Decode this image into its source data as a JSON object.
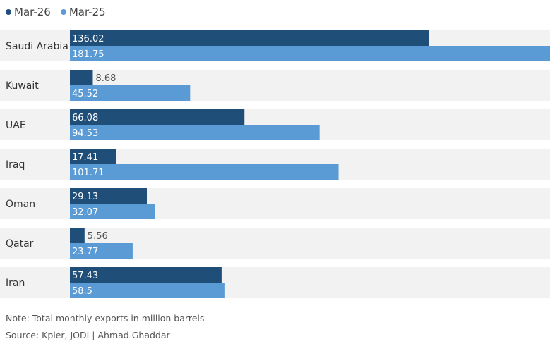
{
  "colors": {
    "mar26": "#1f4e79",
    "mar25": "#5b9bd5",
    "row_bg": "#f2f2f2"
  },
  "legend": [
    {
      "label": "Mar-26",
      "color": "#1f4e79"
    },
    {
      "label": "Mar-25",
      "color": "#5b9bd5"
    }
  ],
  "chart_data": {
    "type": "bar",
    "orientation": "horizontal",
    "categories": [
      "Saudi Arabia",
      "Kuwait",
      "UAE",
      "Iraq",
      "Oman",
      "Qatar",
      "Iran"
    ],
    "series": [
      {
        "name": "Mar-26",
        "values": [
          136.02,
          8.68,
          66.08,
          17.41,
          29.13,
          5.56,
          57.43
        ]
      },
      {
        "name": "Mar-25",
        "values": [
          181.75,
          45.52,
          94.53,
          101.71,
          32.07,
          23.77,
          58.5
        ]
      }
    ],
    "value_labels": [
      [
        "136.02",
        "8.68",
        "66.08",
        "17.41",
        "29.13",
        "5.56",
        "57.43"
      ],
      [
        "181.75",
        "45.52",
        "94.53",
        "101.71",
        "32.07",
        "23.77",
        "58.5"
      ]
    ],
    "xlim": [
      0,
      181.75
    ],
    "grid": false,
    "legend_position": "top-left"
  },
  "notes": {
    "note": "Note: Total monthly exports in million barrels",
    "source": "Source: Kpler, JODI | Ahmad Ghaddar"
  }
}
